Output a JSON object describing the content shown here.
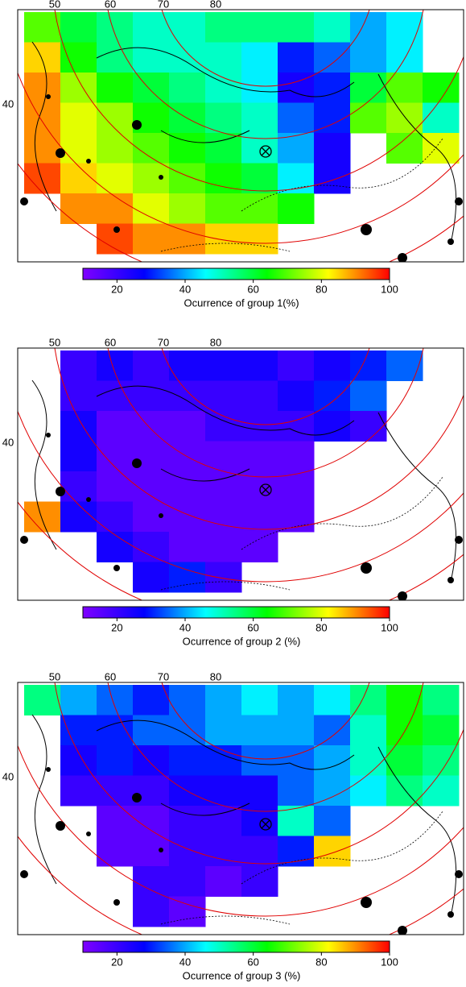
{
  "colorbar": {
    "lim": [
      10,
      100
    ],
    "ticks": [
      20,
      40,
      60,
      80,
      100
    ],
    "colormap": [
      "#7f00ff",
      "#0000ff",
      "#00ffff",
      "#00ff00",
      "#ffff00",
      "#ff0000"
    ]
  },
  "panels": [
    {
      "lon_labels": [
        50,
        60,
        70,
        80
      ],
      "lat_labels": [
        40
      ],
      "colorbar_label": "Ocurrence of group 1(%)",
      "grid": [
        [
          70,
          60,
          55,
          50,
          50,
          55,
          55,
          55,
          50,
          40,
          45,
          null
        ],
        [
          85,
          65,
          55,
          50,
          50,
          50,
          45,
          30,
          35,
          40,
          45,
          null
        ],
        [
          90,
          75,
          65,
          60,
          55,
          50,
          45,
          25,
          30,
          60,
          70,
          65
        ],
        [
          90,
          80,
          75,
          65,
          60,
          55,
          50,
          35,
          30,
          70,
          75,
          50
        ],
        [
          90,
          80,
          75,
          70,
          65,
          60,
          50,
          40,
          25,
          null,
          70,
          80
        ],
        [
          95,
          85,
          80,
          75,
          70,
          65,
          60,
          45,
          25,
          null,
          null,
          null
        ],
        [
          null,
          90,
          90,
          80,
          75,
          70,
          70,
          65,
          null,
          null,
          null,
          null
        ],
        [
          null,
          null,
          95,
          90,
          90,
          85,
          85,
          null,
          null,
          null,
          null,
          null
        ]
      ]
    },
    {
      "lon_labels": [
        50,
        60,
        70,
        80
      ],
      "lat_labels": [
        40
      ],
      "colorbar_label": "Ocurrence of group 2 (%)",
      "grid": [
        [
          null,
          20,
          25,
          20,
          25,
          25,
          25,
          20,
          25,
          30,
          35,
          null
        ],
        [
          null,
          20,
          20,
          20,
          20,
          20,
          20,
          25,
          30,
          35,
          null,
          null
        ],
        [
          null,
          25,
          15,
          15,
          15,
          20,
          20,
          20,
          25,
          20,
          null,
          null
        ],
        [
          null,
          25,
          15,
          15,
          15,
          15,
          15,
          15,
          null,
          null,
          null,
          null
        ],
        [
          null,
          20,
          15,
          15,
          15,
          15,
          15,
          15,
          null,
          null,
          null,
          null
        ],
        [
          90,
          25,
          20,
          15,
          15,
          15,
          15,
          15,
          null,
          null,
          null,
          null
        ],
        [
          null,
          null,
          25,
          20,
          15,
          15,
          15,
          null,
          null,
          null,
          null,
          null
        ],
        [
          null,
          null,
          null,
          25,
          30,
          20,
          null,
          null,
          null,
          null,
          null,
          null
        ]
      ]
    },
    {
      "lon_labels": [
        50,
        60,
        70,
        80
      ],
      "lat_labels": [
        40
      ],
      "colorbar_label": "Ocurrence of group 3 (%)",
      "grid": [
        [
          55,
          40,
          35,
          30,
          35,
          40,
          45,
          40,
          45,
          55,
          65,
          55
        ],
        [
          null,
          30,
          30,
          35,
          35,
          40,
          40,
          40,
          35,
          50,
          65,
          60
        ],
        [
          null,
          25,
          30,
          25,
          30,
          30,
          35,
          35,
          40,
          50,
          60,
          55
        ],
        [
          null,
          20,
          20,
          20,
          25,
          25,
          25,
          35,
          40,
          45,
          55,
          50
        ],
        [
          null,
          null,
          15,
          15,
          20,
          20,
          25,
          50,
          35,
          null,
          null,
          null
        ],
        [
          null,
          null,
          15,
          15,
          20,
          20,
          20,
          30,
          85,
          null,
          null,
          null
        ],
        [
          null,
          null,
          null,
          20,
          20,
          15,
          20,
          null,
          null,
          null,
          null,
          null
        ],
        [
          null,
          null,
          null,
          20,
          15,
          null,
          null,
          null,
          null,
          null,
          null,
          null
        ]
      ]
    }
  ]
}
